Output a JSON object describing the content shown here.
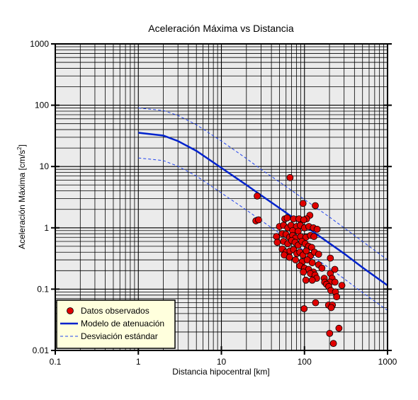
{
  "chart_data": {
    "type": "scatter",
    "title": "Aceleración Máxima vs Distancia",
    "xlabel": "Distancia hipocentral [km]",
    "ylabel_main": "Aceleración Máxima [cm/s",
    "ylabel_sup": "2",
    "ylabel_end": "]",
    "xscale": "log",
    "yscale": "log",
    "xlim": [
      0.1,
      1000
    ],
    "ylim": [
      0.01,
      1000
    ],
    "grid": true,
    "legend_position": "bottom-left",
    "x_ticks": [
      {
        "value": 0.1,
        "label": "0.1"
      },
      {
        "value": 1,
        "label": "1"
      },
      {
        "value": 10,
        "label": "10"
      },
      {
        "value": 100,
        "label": "100"
      },
      {
        "value": 1000,
        "label": "1000"
      }
    ],
    "y_ticks": [
      {
        "value": 0.01,
        "label": "0.01"
      },
      {
        "value": 0.1,
        "label": "0.1"
      },
      {
        "value": 1,
        "label": "1"
      },
      {
        "value": 10,
        "label": "10"
      },
      {
        "value": 100,
        "label": "100"
      },
      {
        "value": 1000,
        "label": "1000"
      }
    ],
    "colors": {
      "background": "#ebebeb",
      "grid": "#000000",
      "points": "#e00000",
      "model": "#0022cc",
      "std": "#2244ee",
      "legend_bg": "#ffffdd"
    },
    "series": [
      {
        "name": "Datos observados",
        "kind": "points",
        "points": [
          [
            67,
            6.6
          ],
          [
            27,
            3.3
          ],
          [
            96,
            2.5
          ],
          [
            135,
            2.3
          ],
          [
            116,
            1.6
          ],
          [
            106,
            1.4
          ],
          [
            26,
            1.3
          ],
          [
            28,
            1.35
          ],
          [
            58,
            1.4
          ],
          [
            62,
            1.45
          ],
          [
            74,
            1.4
          ],
          [
            86,
            1.4
          ],
          [
            98,
            1.35
          ],
          [
            50,
            1.05
          ],
          [
            56,
            1.1
          ],
          [
            63,
            1.0
          ],
          [
            69,
            1.1
          ],
          [
            80,
            1.05
          ],
          [
            89,
            1.1
          ],
          [
            100,
            1.0
          ],
          [
            113,
            1.05
          ],
          [
            128,
            1.0
          ],
          [
            142,
            0.95
          ],
          [
            72,
            0.9
          ],
          [
            84,
            0.88
          ],
          [
            46,
            0.72
          ],
          [
            54,
            0.8
          ],
          [
            60,
            0.78
          ],
          [
            66,
            0.7
          ],
          [
            72,
            0.75
          ],
          [
            78,
            0.68
          ],
          [
            90,
            0.72
          ],
          [
            104,
            0.7
          ],
          [
            118,
            0.75
          ],
          [
            130,
            0.72
          ],
          [
            47,
            0.58
          ],
          [
            56,
            0.6
          ],
          [
            63,
            0.55
          ],
          [
            70,
            0.62
          ],
          [
            77,
            0.58
          ],
          [
            84,
            0.52
          ],
          [
            93,
            0.6
          ],
          [
            102,
            0.55
          ],
          [
            112,
            0.5
          ],
          [
            122,
            0.48
          ],
          [
            54,
            0.45
          ],
          [
            60,
            0.4
          ],
          [
            67,
            0.42
          ],
          [
            74,
            0.44
          ],
          [
            81,
            0.38
          ],
          [
            88,
            0.4
          ],
          [
            96,
            0.36
          ],
          [
            105,
            0.42
          ],
          [
            118,
            0.35
          ],
          [
            132,
            0.4
          ],
          [
            148,
            0.37
          ],
          [
            57,
            0.36
          ],
          [
            66,
            0.33
          ],
          [
            78,
            0.3
          ],
          [
            94,
            0.28
          ],
          [
            108,
            0.3
          ],
          [
            124,
            0.27
          ],
          [
            148,
            0.25
          ],
          [
            205,
            0.32
          ],
          [
            88,
            0.24
          ],
          [
            100,
            0.22
          ],
          [
            112,
            0.21
          ],
          [
            128,
            0.19
          ],
          [
            162,
            0.22
          ],
          [
            97,
            0.19
          ],
          [
            118,
            0.18
          ],
          [
            134,
            0.17
          ],
          [
            205,
            0.18
          ],
          [
            232,
            0.21
          ],
          [
            140,
            0.15
          ],
          [
            173,
            0.15
          ],
          [
            215,
            0.15
          ],
          [
            104,
            0.14
          ],
          [
            124,
            0.14
          ],
          [
            175,
            0.13
          ],
          [
            203,
            0.13
          ],
          [
            233,
            0.13
          ],
          [
            184,
            0.12
          ],
          [
            196,
            0.11
          ],
          [
            282,
            0.115
          ],
          [
            208,
            0.095
          ],
          [
            236,
            0.09
          ],
          [
            244,
            0.075
          ],
          [
            195,
            0.055
          ],
          [
            217,
            0.055
          ],
          [
            210,
            0.05
          ],
          [
            99,
            0.048
          ],
          [
            136,
            0.06
          ],
          [
            260,
            0.023
          ],
          [
            201,
            0.019
          ],
          [
            223,
            0.013
          ]
        ]
      },
      {
        "name": "Modelo de atenuación",
        "kind": "line",
        "points": [
          [
            1,
            35.5
          ],
          [
            2,
            32
          ],
          [
            3,
            26
          ],
          [
            5,
            18
          ],
          [
            10,
            9.5
          ],
          [
            20,
            5.0
          ],
          [
            30,
            3.4
          ],
          [
            50,
            2.1
          ],
          [
            100,
            1.08
          ],
          [
            200,
            0.56
          ],
          [
            300,
            0.38
          ],
          [
            500,
            0.225
          ],
          [
            1000,
            0.115
          ]
        ]
      },
      {
        "name": "Desviación estándar",
        "kind": "dashed",
        "bands": [
          [
            [
              1,
              90
            ],
            [
              2,
              82
            ],
            [
              3,
              68
            ],
            [
              5,
              48
            ],
            [
              10,
              26
            ],
            [
              20,
              13.5
            ],
            [
              30,
              9.0
            ],
            [
              50,
              5.6
            ],
            [
              100,
              2.9
            ],
            [
              200,
              1.5
            ],
            [
              300,
              1.0
            ],
            [
              500,
              0.6
            ],
            [
              1000,
              0.3
            ]
          ],
          [
            [
              1,
              13.8
            ],
            [
              2,
              12.5
            ],
            [
              3,
              10.1
            ],
            [
              5,
              7.0
            ],
            [
              10,
              3.7
            ],
            [
              20,
              1.95
            ],
            [
              30,
              1.32
            ],
            [
              50,
              0.82
            ],
            [
              100,
              0.42
            ],
            [
              200,
              0.22
            ],
            [
              300,
              0.148
            ],
            [
              500,
              0.088
            ],
            [
              1000,
              0.045
            ]
          ]
        ]
      }
    ]
  }
}
